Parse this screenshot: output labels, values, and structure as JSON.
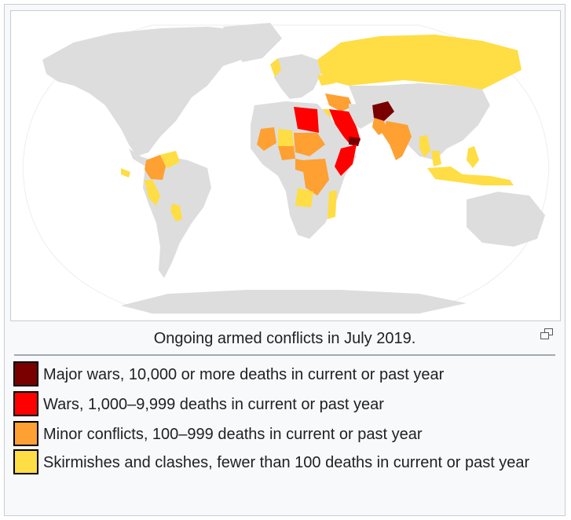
{
  "caption": "Ongoing armed conflicts in July 2019.",
  "legend": {
    "items": [
      {
        "label": "Major wars, 10,000 or more deaths in current or past year",
        "color": "#7a0000"
      },
      {
        "label": "Wars, 1,000–9,999 deaths in current or past year",
        "color": "#ff0000"
      },
      {
        "label": "Minor conflicts, 100–999 deaths in current or past year",
        "color": "#ffa033"
      },
      {
        "label": "Skirmishes and clashes, fewer than 100 deaths in current or past year",
        "color": "#ffdd44"
      }
    ]
  },
  "map": {
    "land_color": "#dddddd",
    "ocean_color": "#ffffff",
    "icons": {
      "enlarge": "magnify-icon"
    }
  }
}
